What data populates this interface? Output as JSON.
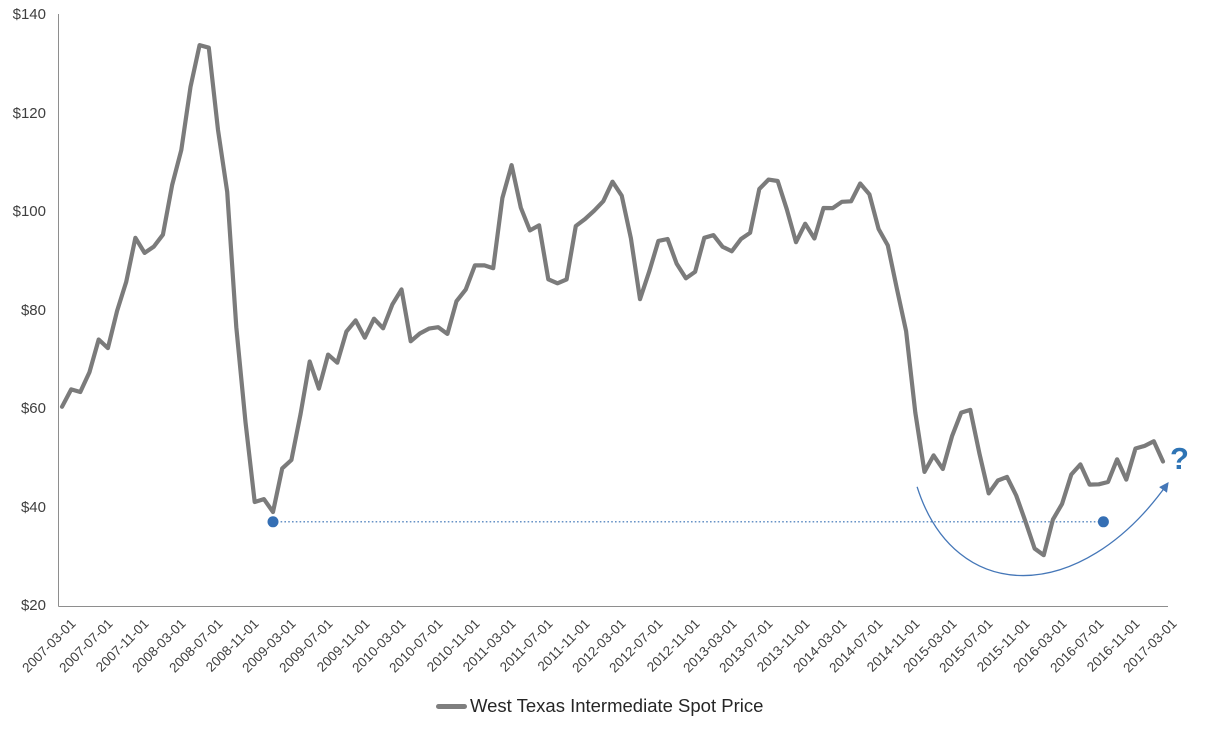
{
  "chart_data": {
    "type": "line",
    "title": "",
    "xlabel": "",
    "ylabel": "",
    "ylim": [
      20,
      140
    ],
    "grid": false,
    "legend_position": "bottom-center",
    "x_start": "2007-03-01",
    "x_frequency": "monthly",
    "series": [
      {
        "name": "West Texas Intermediate Spot Price",
        "color": "#7b7b7b",
        "values": [
          60.44,
          63.98,
          63.46,
          67.49,
          74.12,
          72.36,
          79.92,
          85.8,
          94.77,
          91.69,
          92.97,
          95.39,
          105.45,
          112.58,
          125.4,
          133.88,
          133.37,
          116.67,
          104.11,
          76.61,
          57.31,
          41.12,
          41.71,
          39.09,
          47.94,
          49.65,
          59.03,
          69.64,
          64.15,
          71.05,
          69.41,
          75.72,
          77.99,
          74.47,
          78.33,
          76.39,
          81.2,
          84.29,
          73.74,
          75.34,
          76.32,
          76.6,
          75.24,
          81.89,
          84.25,
          89.15,
          89.17,
          88.58,
          102.86,
          109.53,
          100.9,
          96.26,
          97.3,
          86.33,
          85.52,
          86.32,
          97.16,
          98.56,
          100.27,
          102.2,
          106.16,
          103.32,
          94.66,
          82.3,
          87.9,
          94.13,
          94.51,
          89.49,
          86.53,
          87.86,
          94.76,
          95.31,
          92.94,
          92.02,
          94.51,
          95.77,
          104.67,
          106.57,
          106.29,
          100.54,
          93.86,
          97.63,
          94.62,
          100.82,
          100.8,
          102.07,
          102.18,
          105.79,
          103.59,
          96.54,
          93.21,
          84.4,
          75.79,
          59.29,
          47.22,
          50.58,
          47.82,
          54.45,
          59.27,
          59.82,
          50.9,
          42.87,
          45.48,
          46.22,
          42.44,
          37.19,
          31.68,
          30.32,
          37.55,
          40.76,
          46.71,
          48.76,
          44.65,
          44.72,
          45.18,
          49.78,
          45.66,
          51.97,
          52.5,
          53.47,
          49.33
        ]
      }
    ],
    "y_ticks": [
      {
        "label": "$140",
        "value": 140
      },
      {
        "label": "$120",
        "value": 120
      },
      {
        "label": "$100",
        "value": 100
      },
      {
        "label": "$80",
        "value": 80
      },
      {
        "label": "$60",
        "value": 60
      },
      {
        "label": "$40",
        "value": 40
      },
      {
        "label": "$20",
        "value": 20
      }
    ],
    "x_tick_labels": [
      "2007-03-01",
      "2007-07-01",
      "2007-11-01",
      "2008-03-01",
      "2008-07-01",
      "2008-11-01",
      "2009-03-01",
      "2009-07-01",
      "2009-11-01",
      "2010-03-01",
      "2010-07-01",
      "2010-11-01",
      "2011-03-01",
      "2011-07-01",
      "2011-11-01",
      "2012-03-01",
      "2012-07-01",
      "2012-11-01",
      "2013-03-01",
      "2013-07-01",
      "2013-11-01",
      "2014-03-01",
      "2014-07-01",
      "2014-11-01",
      "2015-03-01",
      "2015-07-01",
      "2015-11-01",
      "2016-03-01",
      "2016-07-01",
      "2016-11-01",
      "2017-03-01"
    ]
  },
  "legend": {
    "label": "West Texas Intermediate Spot Price"
  },
  "annotations": {
    "baseline": {
      "value": 37.1,
      "from_month_index": 23,
      "to_month_index": 113.5,
      "color": "#356fb4",
      "style": "dotted",
      "endpoint_dot_radius": 5.5
    },
    "recovery_arc": {
      "color": "#4577b8",
      "start": {
        "month_index": 93.2,
        "value": 44.2
      },
      "control1": {
        "month_index": 97.3,
        "value": 20.1
      },
      "control2": {
        "month_index": 111.0,
        "value": 20.1
      },
      "end": {
        "month_index": 120.4,
        "value": 44.6
      },
      "arrowhead": true
    },
    "question_mark": {
      "text": "?",
      "color": "#2e74b5"
    }
  },
  "axes": {
    "color": "#8e8e8e"
  }
}
